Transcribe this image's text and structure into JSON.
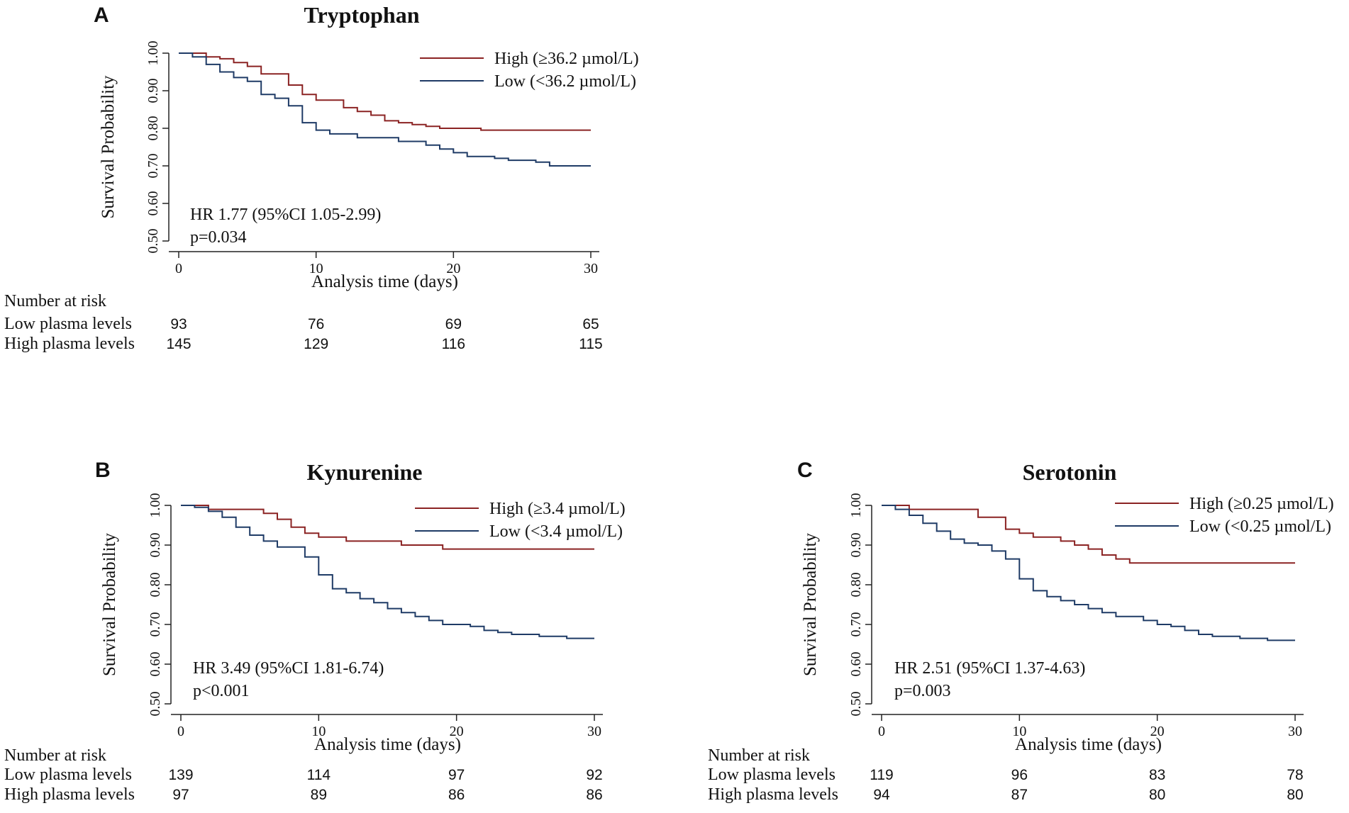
{
  "chart_data": [
    {
      "type": "line",
      "subtype": "kaplan-meier",
      "panel": "A",
      "title": "Tryptophan",
      "xlabel": "Analysis time (days)",
      "ylabel": "Survival Probability",
      "xlim": [
        0,
        30
      ],
      "ylim": [
        0.5,
        1.0
      ],
      "xticks": [
        0,
        10,
        20,
        30
      ],
      "yticks": [
        0.5,
        0.6,
        0.7,
        0.8,
        0.9,
        1.0
      ],
      "ytick_labels": [
        "0.50",
        "0.60",
        "0.70",
        "0.80",
        "0.90",
        "1.00"
      ],
      "legend_position": "top-right",
      "series": [
        {
          "name": "High (≥36.2 µmol/L)",
          "color": "#8b2323",
          "points": [
            [
              0,
              1.0
            ],
            [
              2,
              0.99
            ],
            [
              3,
              0.985
            ],
            [
              4,
              0.975
            ],
            [
              5,
              0.965
            ],
            [
              6,
              0.945
            ],
            [
              8,
              0.915
            ],
            [
              9,
              0.89
            ],
            [
              10,
              0.875
            ],
            [
              12,
              0.855
            ],
            [
              13,
              0.845
            ],
            [
              14,
              0.835
            ],
            [
              15,
              0.82
            ],
            [
              16,
              0.815
            ],
            [
              17,
              0.81
            ],
            [
              18,
              0.805
            ],
            [
              19,
              0.8
            ],
            [
              22,
              0.795
            ],
            [
              30,
              0.795
            ]
          ]
        },
        {
          "name": "Low (<36.2 µmol/L)",
          "color": "#1f3b66",
          "points": [
            [
              0,
              1.0
            ],
            [
              1,
              0.99
            ],
            [
              2,
              0.97
            ],
            [
              3,
              0.95
            ],
            [
              4,
              0.935
            ],
            [
              5,
              0.925
            ],
            [
              6,
              0.89
            ],
            [
              7,
              0.88
            ],
            [
              8,
              0.86
            ],
            [
              9,
              0.815
            ],
            [
              10,
              0.795
            ],
            [
              11,
              0.785
            ],
            [
              13,
              0.775
            ],
            [
              16,
              0.765
            ],
            [
              18,
              0.755
            ],
            [
              19,
              0.745
            ],
            [
              20,
              0.735
            ],
            [
              21,
              0.725
            ],
            [
              23,
              0.72
            ],
            [
              24,
              0.715
            ],
            [
              26,
              0.71
            ],
            [
              27,
              0.7
            ],
            [
              30,
              0.7
            ]
          ]
        }
      ],
      "annotations": [
        "HR 1.77 (95%CI 1.05-2.99)",
        "p=0.034"
      ],
      "risk_table": {
        "heading": "Number at risk",
        "rows": [
          {
            "label": "Low plasma levels",
            "values": [
              "93",
              "76",
              "69",
              "65"
            ]
          },
          {
            "label": "High plasma levels",
            "values": [
              "145",
              "129",
              "116",
              "115"
            ]
          }
        ]
      }
    },
    {
      "type": "line",
      "subtype": "kaplan-meier",
      "panel": "B",
      "title": "Kynurenine",
      "xlabel": "Analysis time (days)",
      "ylabel": "Survival Probability",
      "xlim": [
        0,
        30
      ],
      "ylim": [
        0.5,
        1.0
      ],
      "xticks": [
        0,
        10,
        20,
        30
      ],
      "yticks": [
        0.5,
        0.6,
        0.7,
        0.8,
        0.9,
        1.0
      ],
      "ytick_labels": [
        "0.50",
        "0.60",
        "0.70",
        "0.80",
        "0.90",
        "1.00"
      ],
      "legend_position": "top-right",
      "series": [
        {
          "name": "High (≥3.4 µmol/L)",
          "color": "#8b2323",
          "points": [
            [
              0,
              1.0
            ],
            [
              2,
              0.99
            ],
            [
              6,
              0.98
            ],
            [
              7,
              0.965
            ],
            [
              8,
              0.945
            ],
            [
              9,
              0.93
            ],
            [
              10,
              0.92
            ],
            [
              12,
              0.91
            ],
            [
              16,
              0.9
            ],
            [
              19,
              0.89
            ],
            [
              30,
              0.89
            ]
          ]
        },
        {
          "name": "Low (<3.4 µmol/L)",
          "color": "#1f3b66",
          "points": [
            [
              0,
              1.0
            ],
            [
              1,
              0.995
            ],
            [
              2,
              0.985
            ],
            [
              3,
              0.97
            ],
            [
              4,
              0.945
            ],
            [
              5,
              0.925
            ],
            [
              6,
              0.91
            ],
            [
              7,
              0.895
            ],
            [
              9,
              0.87
            ],
            [
              10,
              0.825
            ],
            [
              11,
              0.79
            ],
            [
              12,
              0.78
            ],
            [
              13,
              0.765
            ],
            [
              14,
              0.755
            ],
            [
              15,
              0.74
            ],
            [
              16,
              0.73
            ],
            [
              17,
              0.72
            ],
            [
              18,
              0.71
            ],
            [
              19,
              0.7
            ],
            [
              21,
              0.695
            ],
            [
              22,
              0.685
            ],
            [
              23,
              0.68
            ],
            [
              24,
              0.675
            ],
            [
              26,
              0.67
            ],
            [
              28,
              0.665
            ],
            [
              30,
              0.665
            ]
          ]
        }
      ],
      "annotations": [
        "HR 3.49 (95%CI 1.81-6.74)",
        "p<0.001"
      ],
      "risk_table": {
        "heading": "Number at risk",
        "rows": [
          {
            "label": "Low plasma levels",
            "values": [
              "139",
              "114",
              "97",
              "92"
            ]
          },
          {
            "label": "High plasma levels",
            "values": [
              "97",
              "89",
              "86",
              "86"
            ]
          }
        ]
      }
    },
    {
      "type": "line",
      "subtype": "kaplan-meier",
      "panel": "C",
      "title": "Serotonin",
      "xlabel": "Analysis time (days)",
      "ylabel": "Survival Probability",
      "xlim": [
        0,
        30
      ],
      "ylim": [
        0.5,
        1.0
      ],
      "xticks": [
        0,
        10,
        20,
        30
      ],
      "yticks": [
        0.5,
        0.6,
        0.7,
        0.8,
        0.9,
        1.0
      ],
      "ytick_labels": [
        "0.50",
        "0.60",
        "0.70",
        "0.80",
        "0.90",
        "1.00"
      ],
      "legend_position": "top-right",
      "series": [
        {
          "name": "High (≥0.25 µmol/L)",
          "color": "#8b2323",
          "points": [
            [
              0,
              1.0
            ],
            [
              2,
              0.99
            ],
            [
              7,
              0.97
            ],
            [
              9,
              0.94
            ],
            [
              10,
              0.93
            ],
            [
              11,
              0.92
            ],
            [
              13,
              0.91
            ],
            [
              14,
              0.9
            ],
            [
              15,
              0.89
            ],
            [
              16,
              0.875
            ],
            [
              17,
              0.865
            ],
            [
              18,
              0.855
            ],
            [
              30,
              0.855
            ]
          ]
        },
        {
          "name": "Low (<0.25 µmol/L)",
          "color": "#1f3b66",
          "points": [
            [
              0,
              1.0
            ],
            [
              1,
              0.99
            ],
            [
              2,
              0.975
            ],
            [
              3,
              0.955
            ],
            [
              4,
              0.935
            ],
            [
              5,
              0.915
            ],
            [
              6,
              0.905
            ],
            [
              7,
              0.9
            ],
            [
              8,
              0.885
            ],
            [
              9,
              0.865
            ],
            [
              10,
              0.815
            ],
            [
              11,
              0.785
            ],
            [
              12,
              0.77
            ],
            [
              13,
              0.76
            ],
            [
              14,
              0.75
            ],
            [
              15,
              0.74
            ],
            [
              16,
              0.73
            ],
            [
              17,
              0.72
            ],
            [
              19,
              0.71
            ],
            [
              20,
              0.7
            ],
            [
              21,
              0.695
            ],
            [
              22,
              0.685
            ],
            [
              23,
              0.675
            ],
            [
              24,
              0.67
            ],
            [
              26,
              0.665
            ],
            [
              28,
              0.66
            ],
            [
              30,
              0.66
            ]
          ]
        }
      ],
      "annotations": [
        "HR 2.51 (95%CI 1.37-4.63)",
        "p=0.003"
      ],
      "risk_table": {
        "heading": "Number at risk",
        "rows": [
          {
            "label": "Low plasma levels",
            "values": [
              "119",
              "96",
              "83",
              "78"
            ]
          },
          {
            "label": "High plasma levels",
            "values": [
              "94",
              "87",
              "80",
              "80"
            ]
          }
        ]
      }
    }
  ]
}
